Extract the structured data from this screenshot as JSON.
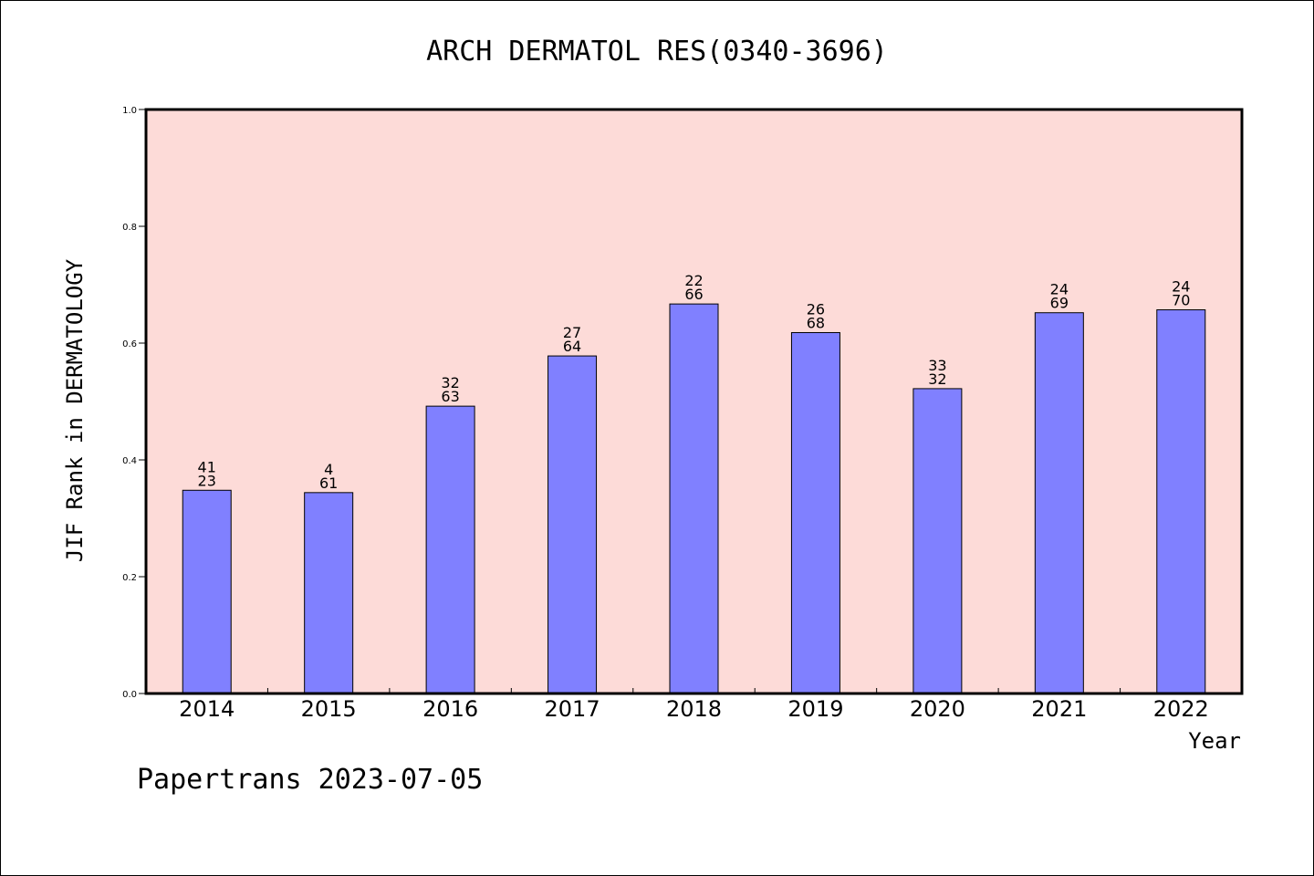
{
  "chart_data": {
    "type": "bar",
    "title": "ARCH DERMATOL RES(0340-3696)",
    "xlabel": "Year",
    "ylabel": "JIF Rank in DERMATOLOGY",
    "ylim": [
      0,
      1.0
    ],
    "yticks": [
      "0.0",
      "0.2",
      "0.4",
      "0.6",
      "0.8",
      "1.0"
    ],
    "grid": false,
    "categories": [
      "2014",
      "2015",
      "2016",
      "2017",
      "2018",
      "2019",
      "2020",
      "2021",
      "2022"
    ],
    "values": [
      0.348,
      0.344,
      0.492,
      0.578,
      0.667,
      0.618,
      0.522,
      0.652,
      0.657
    ],
    "rank_labels": [
      "41",
      "4",
      "32",
      "27",
      "22",
      "26",
      "33",
      "24",
      "24"
    ],
    "total_labels": [
      "23",
      "61",
      "63",
      "64",
      "66",
      "68",
      "32",
      "69",
      "70"
    ],
    "colors": {
      "bar": "#8080ff",
      "plot_background": "#fddbd8",
      "axis": "#000000"
    }
  },
  "footer": {
    "text": "Papertrans 2023-07-05"
  }
}
